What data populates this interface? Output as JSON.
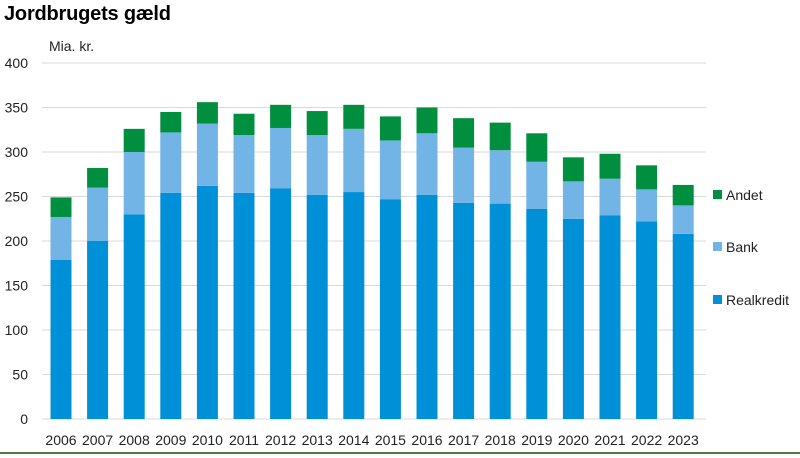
{
  "title": "Jordbrugets gæld",
  "unit_label": "Mia. kr.",
  "chart_data": {
    "type": "bar",
    "stacked": true,
    "title": "Jordbrugets gæld",
    "ylabel": "Mia. kr.",
    "xlabel": "",
    "ylim": [
      0,
      400
    ],
    "yticks": [
      0,
      50,
      100,
      150,
      200,
      250,
      300,
      350,
      400
    ],
    "grid": true,
    "legend_position": "right",
    "categories": [
      "2006",
      "2007",
      "2008",
      "2009",
      "2010",
      "2011",
      "2012",
      "2013",
      "2014",
      "2015",
      "2016",
      "2017",
      "2018",
      "2019",
      "2020",
      "2021",
      "2022",
      "2023"
    ],
    "series": [
      {
        "name": "Realkredit",
        "color": "#0090d8",
        "values": [
          179,
          200,
          230,
          254,
          262,
          254,
          259,
          252,
          255,
          247,
          252,
          243,
          242,
          236,
          225,
          229,
          222,
          208
        ]
      },
      {
        "name": "Bank",
        "color": "#72b4e6",
        "values": [
          48,
          60,
          70,
          68,
          70,
          65,
          68,
          67,
          71,
          66,
          69,
          62,
          60,
          53,
          42,
          41,
          36,
          32
        ]
      },
      {
        "name": "Andet",
        "color": "#008f3e",
        "values": [
          22,
          22,
          26,
          23,
          24,
          24,
          26,
          27,
          27,
          27,
          29,
          33,
          31,
          32,
          27,
          28,
          27,
          23
        ]
      }
    ],
    "legend_order": [
      "Andet",
      "Bank",
      "Realkredit"
    ]
  }
}
